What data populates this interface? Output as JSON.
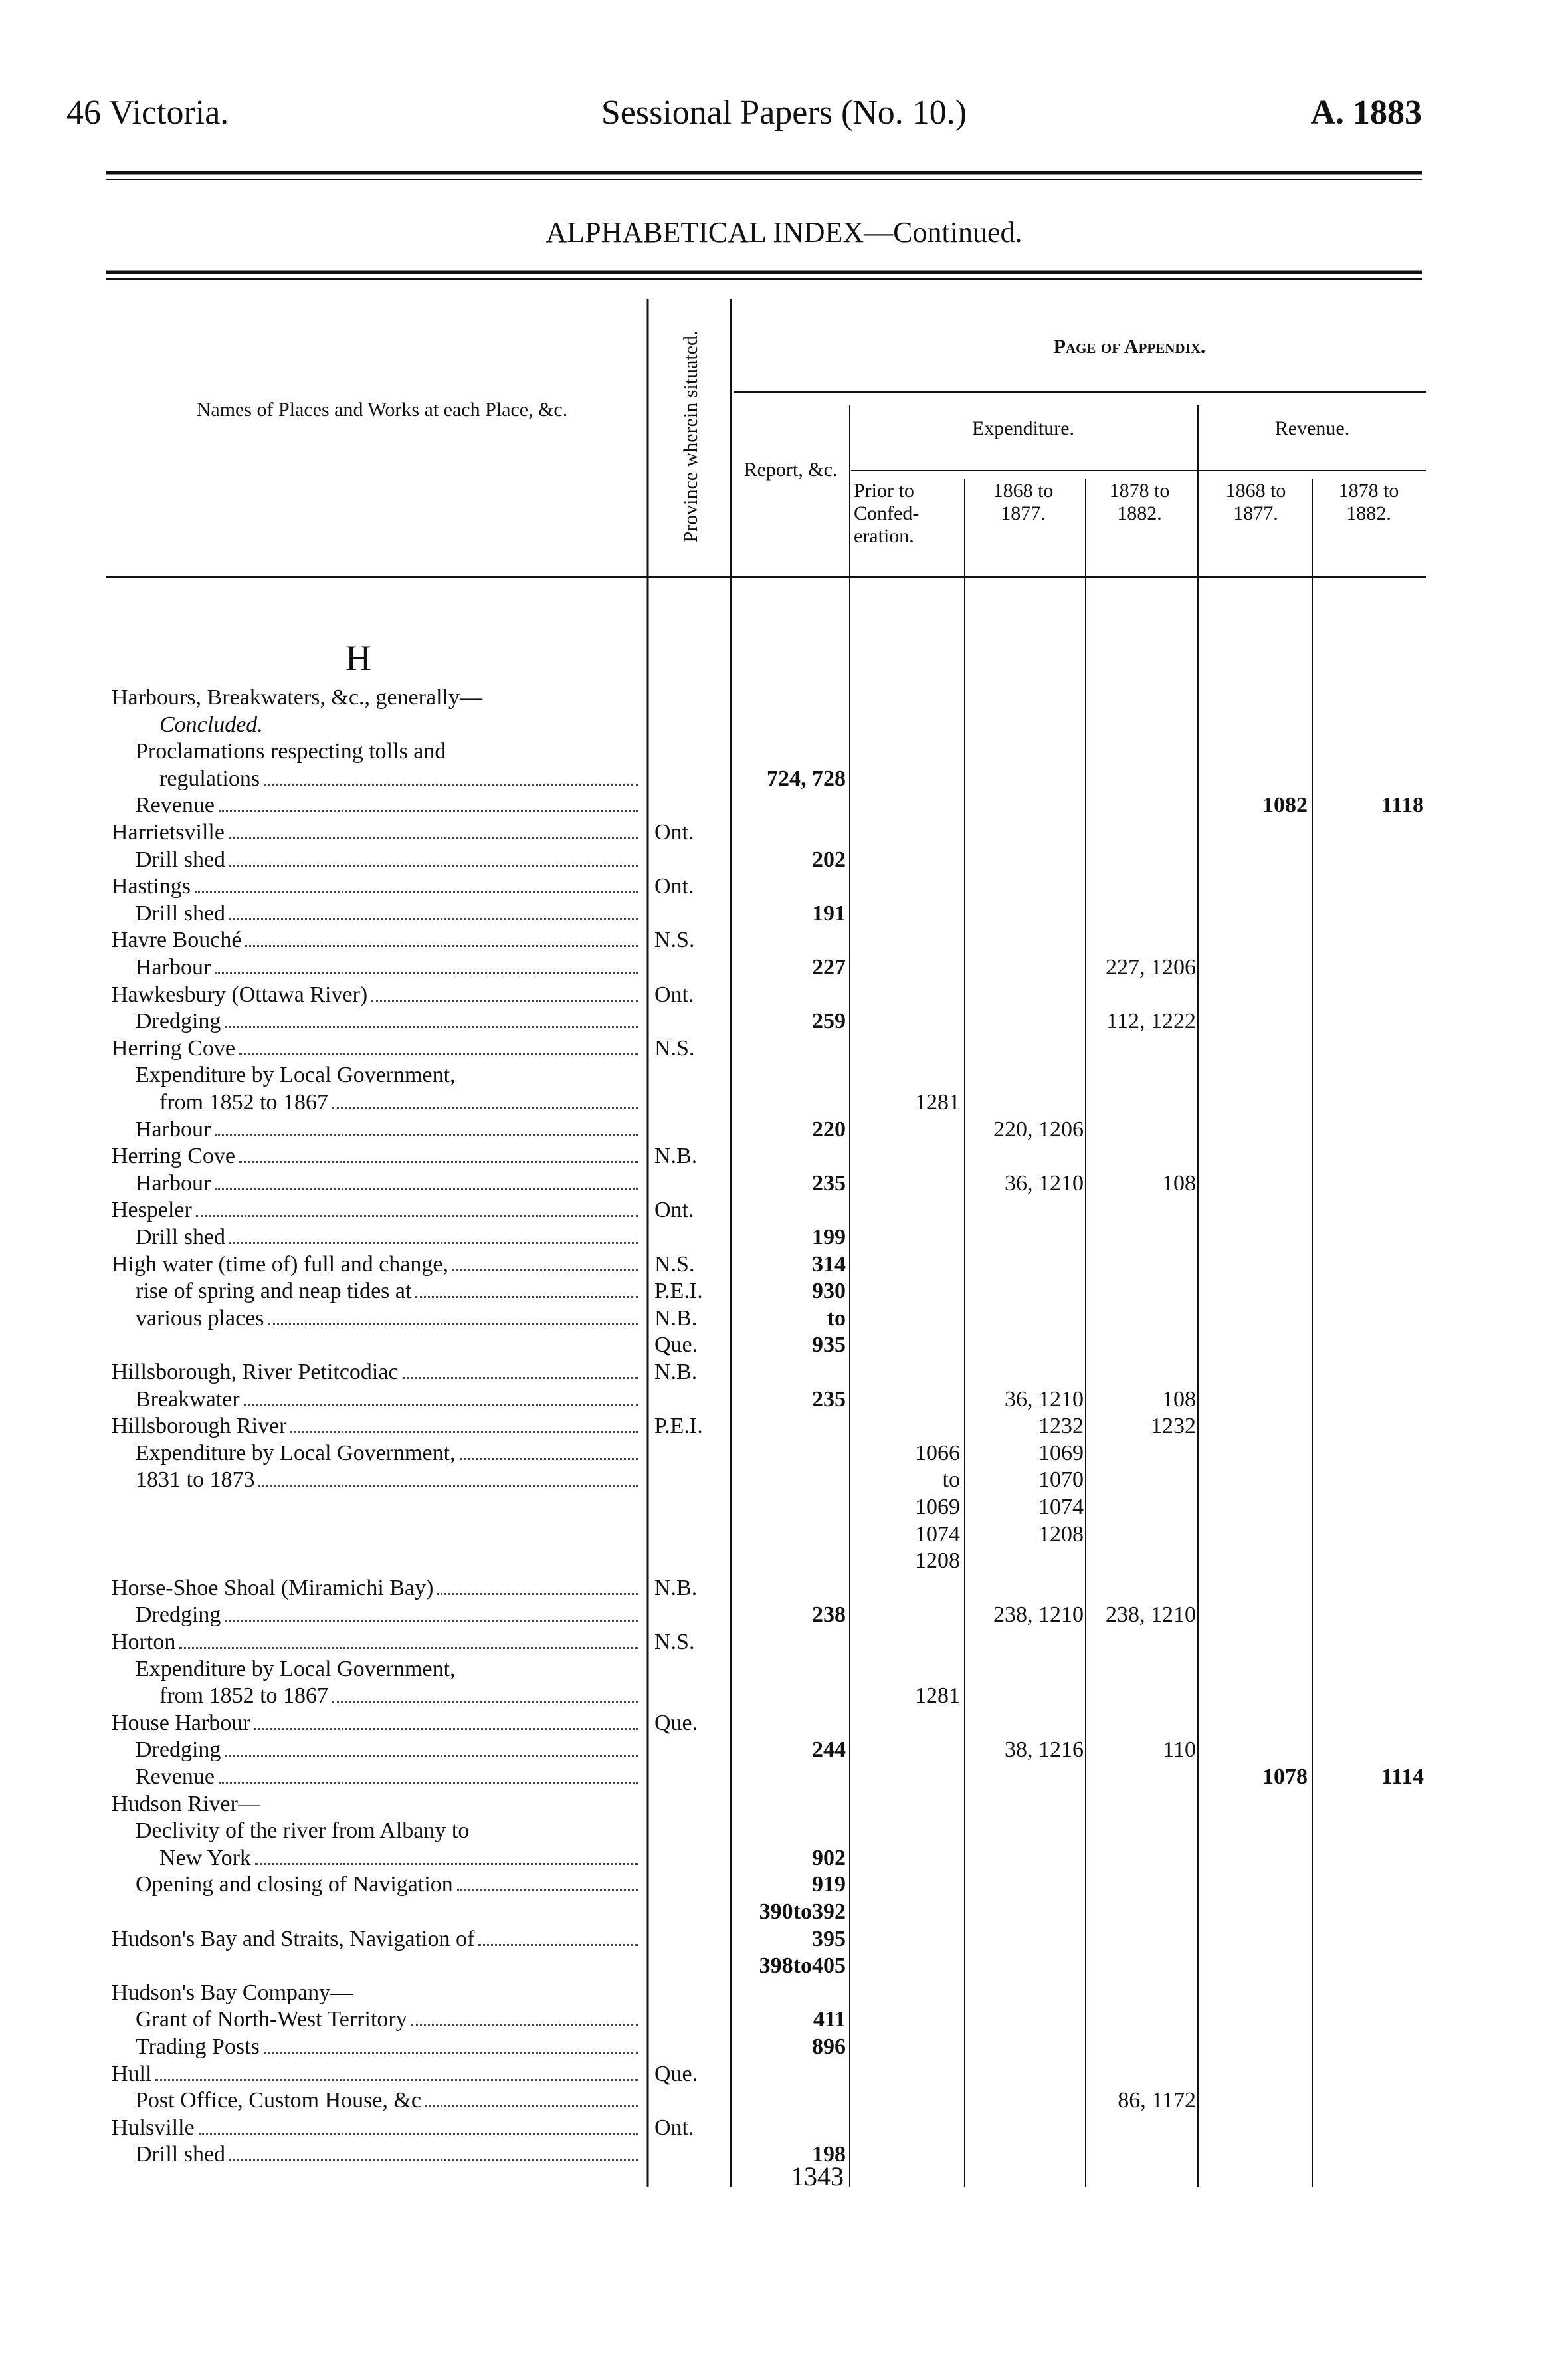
{
  "header": {
    "left": "46 Victoria.",
    "center": "Sessional Papers (No. 10.)",
    "right": "A. 1883"
  },
  "title": "ALPHABETICAL INDEX—Continued.",
  "columns": {
    "names": "Names of Places and Works at each Place, &c.",
    "province": "Province wherein situated.",
    "report": "Report, &c.",
    "appendix": "Page of Appendix.",
    "expenditure": "Expenditure.",
    "revenue": "Revenue.",
    "prior": "Prior to Confed- eration.",
    "exp_1868_1877": "1868 to 1877.",
    "exp_1878_1882": "1878 to 1882.",
    "rev_1868_1877": "1868 to 1877.",
    "rev_1878_1882": "1878 to 1882."
  },
  "section": "H",
  "rows": [
    {
      "name": "Harbours, Breakwaters, &c., generally—"
    },
    {
      "name": "Concluded."
    },
    {
      "name": "Proclamations respecting tolls and"
    },
    {
      "name": "regulations",
      "report": "724, 728"
    },
    {
      "name": "Revenue",
      "rev_1868_1877": "1082",
      "rev_1878_1882": "1118"
    },
    {
      "name": "Harrietsville",
      "province": "Ont."
    },
    {
      "name": "Drill shed",
      "report": "202"
    },
    {
      "name": "Hastings",
      "province": "Ont."
    },
    {
      "name": "Drill shed",
      "report": "191"
    },
    {
      "name": "Havre Bouché",
      "province": "N.S."
    },
    {
      "name": "Harbour",
      "report": "227",
      "exp_1878_1882": "227, 1206"
    },
    {
      "name": "Hawkesbury (Ottawa River)",
      "province": "Ont."
    },
    {
      "name": "Dredging",
      "report": "259",
      "exp_1878_1882": "112, 1222"
    },
    {
      "name": "Herring Cove",
      "province": "N.S."
    },
    {
      "name": "Expenditure by Local Government,"
    },
    {
      "name": "from 1852 to 1867",
      "prior": "1281"
    },
    {
      "name": "Harbour",
      "report": "220",
      "exp_1868_1877": "220, 1206"
    },
    {
      "name": "Herring Cove",
      "province": "N.B."
    },
    {
      "name": "Harbour",
      "report": "235",
      "exp_1868_1877": "36, 1210",
      "exp_1878_1882": "108"
    },
    {
      "name": "Hespeler",
      "province": "Ont."
    },
    {
      "name": "Drill shed",
      "report": "199"
    },
    {
      "name": "High water (time of) full and change,",
      "province": "N.S.",
      "report": "314"
    },
    {
      "name": "rise of spring and neap tides at",
      "province": "P.E.I.",
      "report": "930"
    },
    {
      "name": "various places",
      "province": "N.B.",
      "report": "to"
    },
    {
      "province": "Que.",
      "report": "935"
    },
    {
      "name": "Hillsborough, River Petitcodiac",
      "province": "N.B."
    },
    {
      "name": "Breakwater",
      "report": "235",
      "exp_1868_1877": "36, 1210",
      "exp_1878_1882": "108"
    },
    {
      "name": "Hillsborough River",
      "province": "P.E.I.",
      "exp_1868_1877": "1232",
      "exp_1878_1882": "1232"
    },
    {
      "name": "Expenditure by Local Government,",
      "prior": "1066",
      "exp_1868_1877": "1069"
    },
    {
      "name": "1831 to 1873",
      "prior": "to",
      "exp_1868_1877": "1070"
    },
    {
      "prior": "1069",
      "exp_1868_1877": "1074"
    },
    {
      "prior": "1074",
      "exp_1868_1877": "1208"
    },
    {
      "prior": "1208"
    },
    {
      "name": "Horse-Shoe Shoal (Miramichi Bay)",
      "province": "N.B."
    },
    {
      "name": "Dredging",
      "report": "238",
      "exp_1868_1877": "238, 1210",
      "exp_1878_1882": "238, 1210"
    },
    {
      "name": "Horton",
      "province": "N.S."
    },
    {
      "name": "Expenditure by Local Government,"
    },
    {
      "name": "from 1852 to 1867",
      "prior": "1281"
    },
    {
      "name": "House Harbour",
      "province": "Que."
    },
    {
      "name": "Dredging",
      "report": "244",
      "exp_1868_1877": "38, 1216",
      "exp_1878_1882": "110"
    },
    {
      "name": "Revenue",
      "rev_1868_1877": "1078",
      "rev_1878_1882": "1114"
    },
    {
      "name": "Hudson River—"
    },
    {
      "name": "Declivity of the river from Albany to"
    },
    {
      "name": "New York",
      "report": "902"
    },
    {
      "name": "Opening and closing of Navigation",
      "report": "919"
    },
    {
      "report": "390to392"
    },
    {
      "name": "Hudson's Bay and Straits, Navigation of",
      "report": "395"
    },
    {
      "report": "398to405"
    },
    {
      "name": "Hudson's Bay Company—"
    },
    {
      "name": "Grant of North-West Territory",
      "report": "411"
    },
    {
      "name": "Trading Posts",
      "report": "896"
    },
    {
      "name": "Hull",
      "province": "Que."
    },
    {
      "name": "Post Office, Custom House, &c",
      "exp_1878_1882": "86, 1172"
    },
    {
      "name": "Hulsville",
      "province": "Ont."
    },
    {
      "name": "Drill shed",
      "report": "198"
    }
  ],
  "page_number": "1343"
}
